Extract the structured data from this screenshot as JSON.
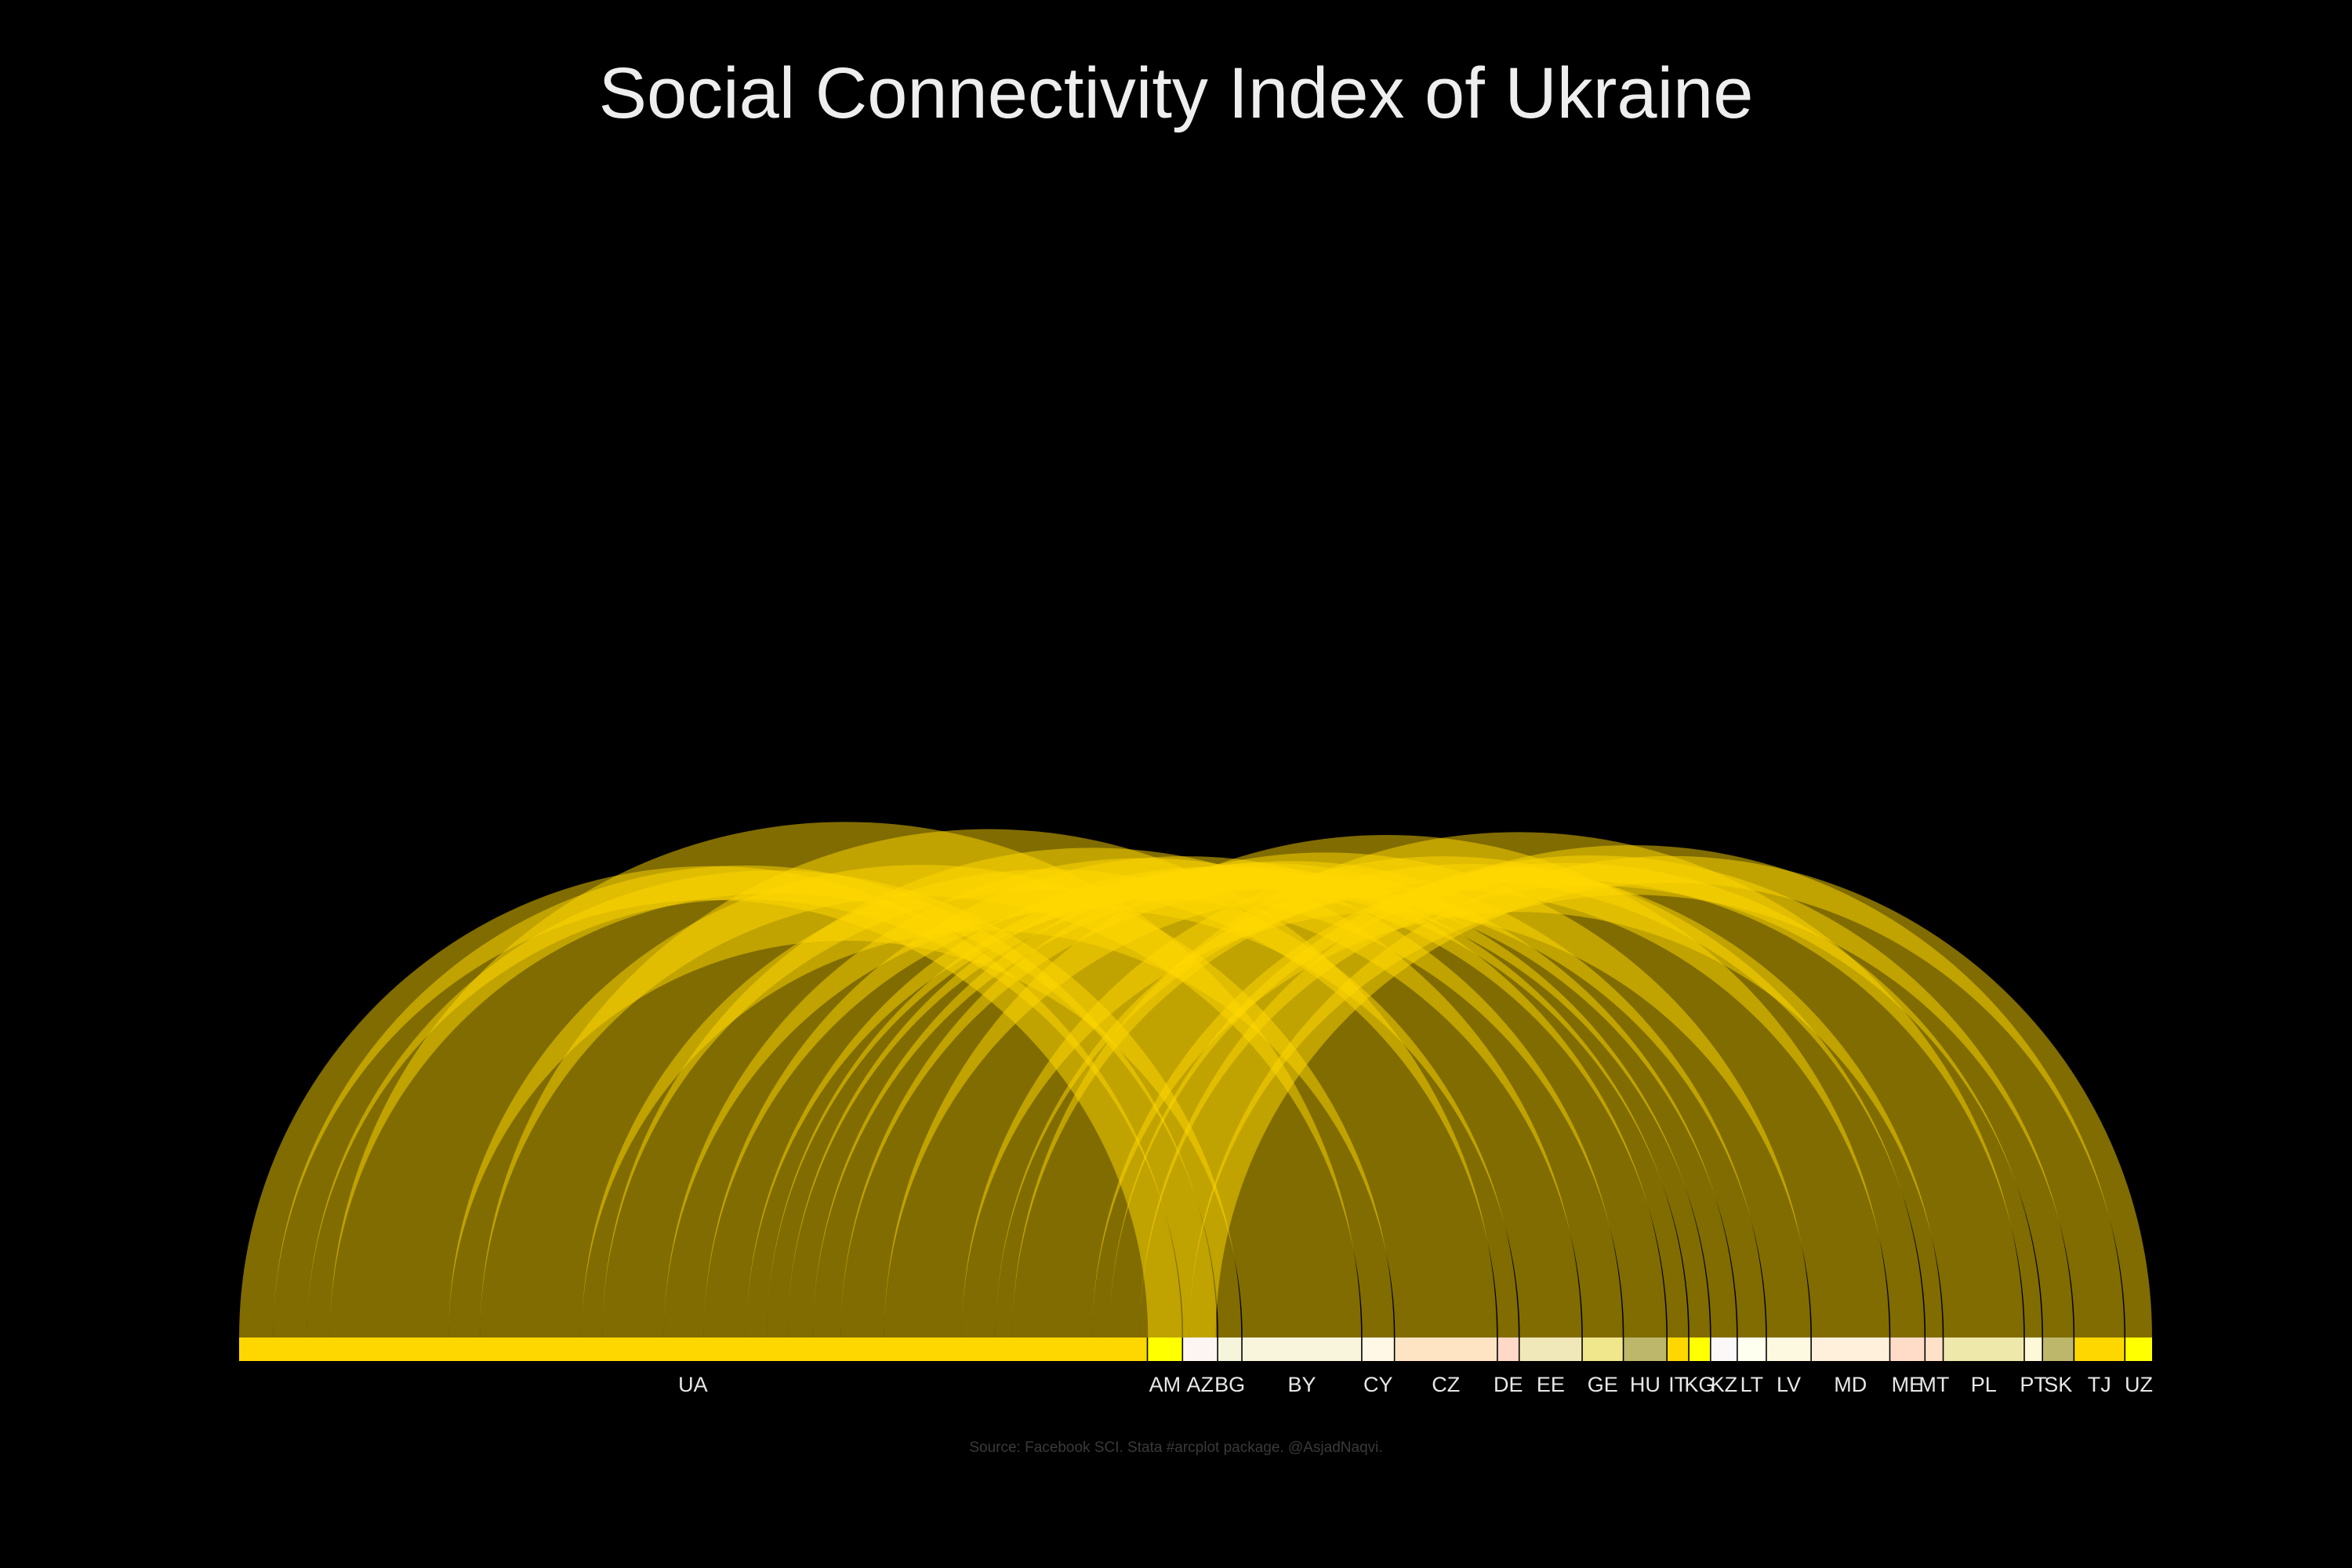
{
  "chart_data": {
    "type": "arc",
    "title": "Social Connectivity Index of Ukraine",
    "source_note": "Source: Facebook SCI. Stata #arcplot package. @AsjadNaqvi.",
    "background_color": "#000000",
    "arc_color": "#ffd700",
    "arc_opacity": 0.5,
    "origin_node": "UA",
    "nodes": [
      {
        "id": "UA",
        "weight": 75.0,
        "color": "#ffd700"
      },
      {
        "id": "AM",
        "weight": 2.8,
        "color": "#ffff00"
      },
      {
        "id": "AZ",
        "weight": 2.8,
        "color": "#fdf5f2"
      },
      {
        "id": "BG",
        "weight": 1.9,
        "color": "#f5f5dc"
      },
      {
        "id": "BY",
        "weight": 9.8,
        "color": "#f8f5dc"
      },
      {
        "id": "CY",
        "weight": 2.6,
        "color": "#fff8e6"
      },
      {
        "id": "CZ",
        "weight": 8.4,
        "color": "#ffe4c4"
      },
      {
        "id": "DE",
        "weight": 1.7,
        "color": "#ffd8c8"
      },
      {
        "id": "EE",
        "weight": 5.1,
        "color": "#f0e8b8"
      },
      {
        "id": "GE",
        "weight": 3.3,
        "color": "#f0e68c"
      },
      {
        "id": "HU",
        "weight": 3.5,
        "color": "#bdb76b"
      },
      {
        "id": "IT",
        "weight": 1.7,
        "color": "#ffd700"
      },
      {
        "id": "KG",
        "weight": 1.7,
        "color": "#ffff00"
      },
      {
        "id": "KZ",
        "weight": 2.1,
        "color": "#fdf8f8"
      },
      {
        "id": "LT",
        "weight": 2.3,
        "color": "#fffff0"
      },
      {
        "id": "LV",
        "weight": 3.6,
        "color": "#fdf8e0"
      },
      {
        "id": "MD",
        "weight": 6.4,
        "color": "#fff0dc"
      },
      {
        "id": "ME",
        "weight": 2.8,
        "color": "#ffdcc8"
      },
      {
        "id": "MT",
        "weight": 1.4,
        "color": "#ffe0c8"
      },
      {
        "id": "PL",
        "weight": 6.6,
        "color": "#eee8aa"
      },
      {
        "id": "PT",
        "weight": 1.4,
        "color": "#fff8d8"
      },
      {
        "id": "SK",
        "weight": 2.5,
        "color": "#bdb76b"
      },
      {
        "id": "TJ",
        "weight": 4.1,
        "color": "#ffd700"
      },
      {
        "id": "UZ",
        "weight": 2.2,
        "color": "#ffff00"
      }
    ]
  }
}
